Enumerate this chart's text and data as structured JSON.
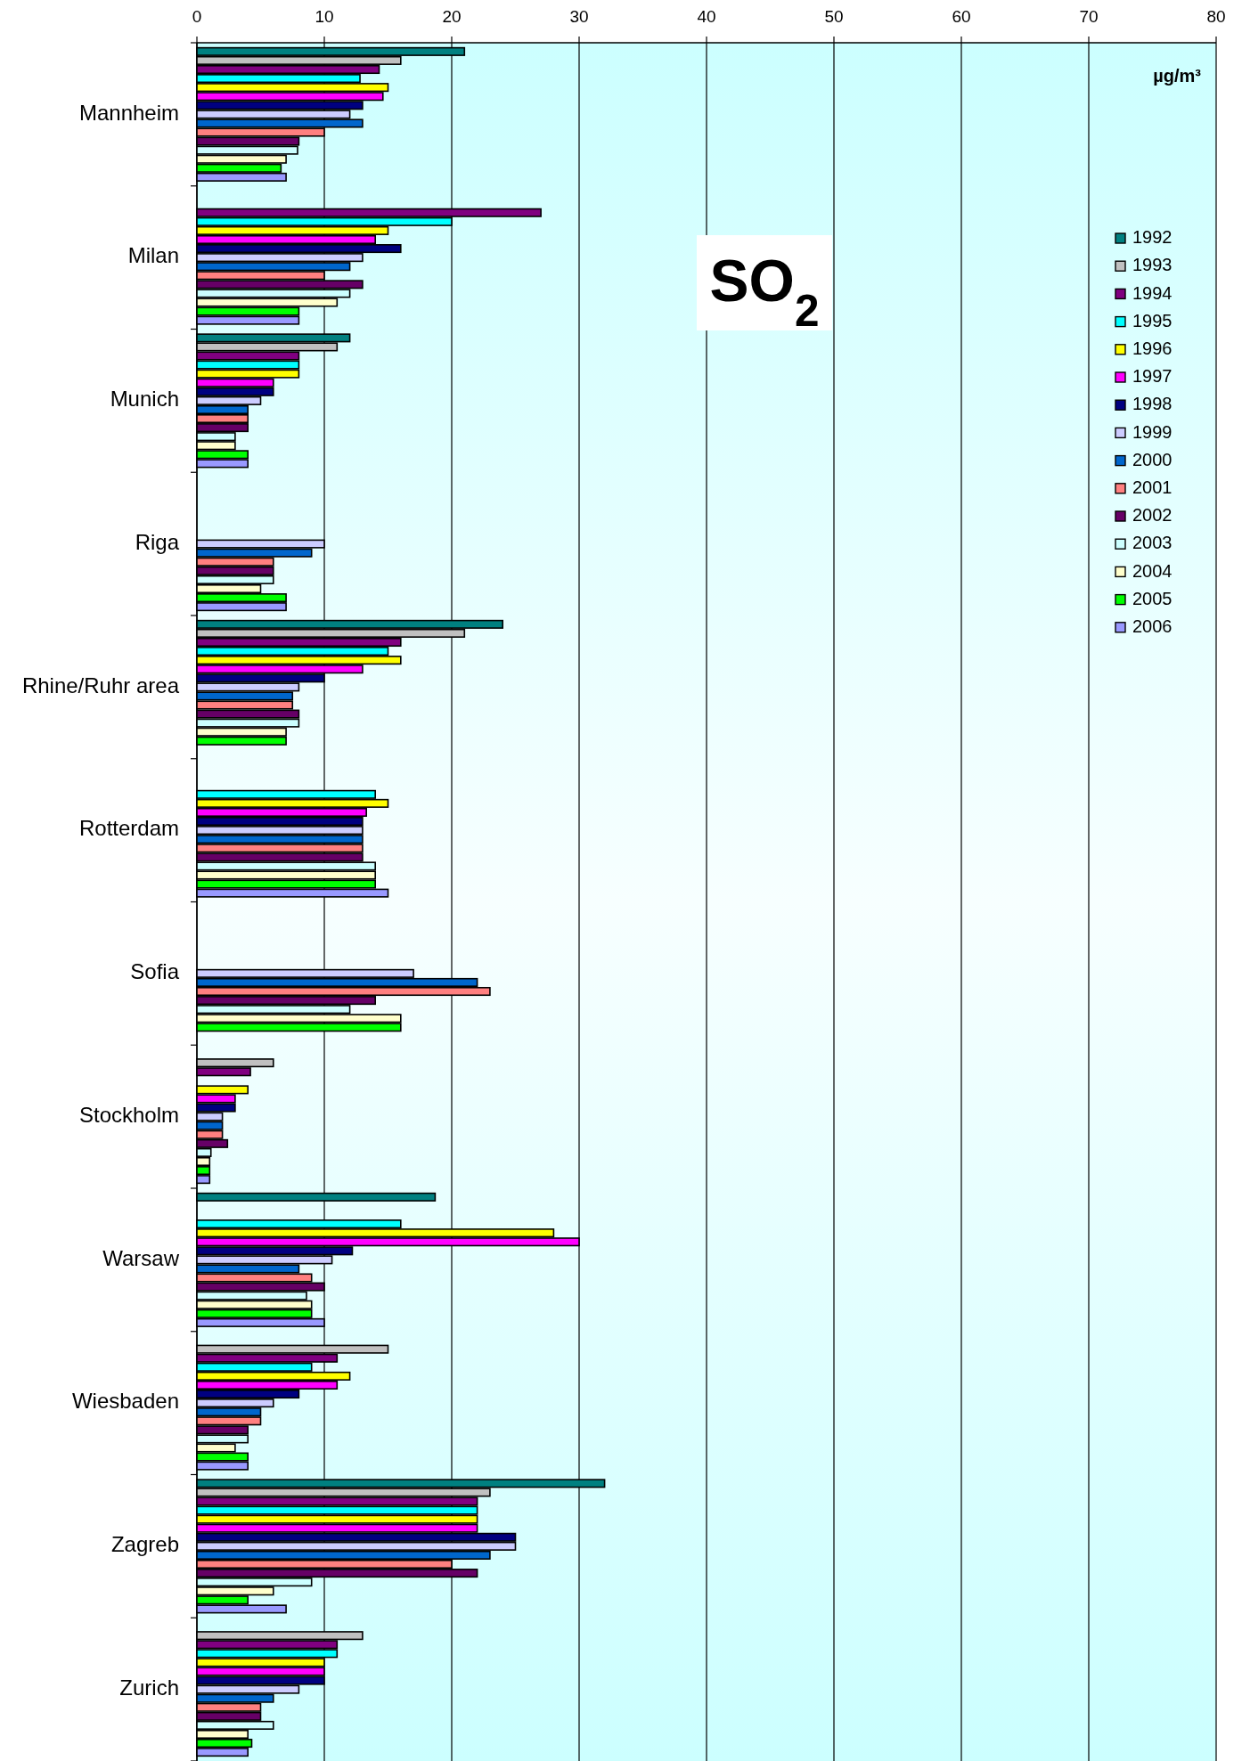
{
  "chart_data": {
    "type": "bar",
    "orientation": "horizontal",
    "title": "SO$_{2}$",
    "annotations": [
      "µg/m³"
    ],
    "categories": [
      "Mannheim",
      "Milan",
      "Munich",
      "Riga",
      "Rhine/Ruhr area",
      "Rotterdam",
      "Sofia",
      "Stockholm",
      "Warsaw",
      "Wiesbaden",
      "Zagreb",
      "Zurich"
    ],
    "xlim": [
      0,
      80
    ],
    "xticks": [
      0,
      10,
      20,
      30,
      40,
      50,
      60,
      70,
      80
    ],
    "grid": "x",
    "legend": "right",
    "series": [
      {
        "name": "1992",
        "color": "#008080",
        "values": [
          21,
          null,
          12,
          null,
          24,
          null,
          null,
          null,
          18.7,
          null,
          32,
          null
        ]
      },
      {
        "name": "1993",
        "color": "#c0c0c0",
        "values": [
          16,
          null,
          11,
          null,
          21,
          null,
          null,
          6,
          null,
          15,
          23,
          13
        ]
      },
      {
        "name": "1994",
        "color": "#800080",
        "values": [
          14.3,
          27,
          8,
          null,
          16,
          null,
          null,
          4.2,
          null,
          11,
          22,
          11
        ]
      },
      {
        "name": "1995",
        "color": "#00ffff",
        "values": [
          12.8,
          20,
          8,
          null,
          15,
          14,
          null,
          null,
          16,
          9,
          22,
          11
        ]
      },
      {
        "name": "1996",
        "color": "#ffff00",
        "values": [
          15,
          15,
          8,
          null,
          16,
          15,
          null,
          4,
          28,
          12,
          22,
          10
        ]
      },
      {
        "name": "1997",
        "color": "#ff00ff",
        "values": [
          14.6,
          14,
          6,
          null,
          13,
          13.3,
          null,
          3,
          30,
          11,
          22,
          10
        ]
      },
      {
        "name": "1998",
        "color": "#000080",
        "values": [
          13,
          16,
          6,
          null,
          10,
          13,
          null,
          3,
          12.2,
          8,
          25,
          10
        ]
      },
      {
        "name": "1999",
        "color": "#ccccff",
        "values": [
          12,
          13,
          5,
          10,
          8,
          13,
          17,
          2,
          10.6,
          6,
          25,
          8
        ]
      },
      {
        "name": "2000",
        "color": "#0066cc",
        "values": [
          13,
          12,
          4,
          9,
          7.5,
          13,
          22,
          2,
          8,
          5,
          23,
          6
        ]
      },
      {
        "name": "2001",
        "color": "#ff8080",
        "values": [
          10,
          10,
          4,
          6,
          7.5,
          13,
          23,
          2,
          9,
          5,
          20,
          5
        ]
      },
      {
        "name": "2002",
        "color": "#660066",
        "values": [
          8,
          13,
          4,
          6,
          8,
          13,
          14,
          2.4,
          10,
          4,
          22,
          5
        ]
      },
      {
        "name": "2003",
        "color": "#ccffff",
        "values": [
          7.9,
          12,
          3,
          6,
          8,
          14,
          12,
          1.1,
          8.6,
          4,
          9,
          6
        ]
      },
      {
        "name": "2004",
        "color": "#ffffcc",
        "values": [
          7,
          11,
          3,
          5,
          7,
          14,
          16,
          1,
          9,
          3,
          6,
          4
        ]
      },
      {
        "name": "2005",
        "color": "#00ff00",
        "values": [
          6.6,
          8,
          4,
          7,
          7,
          14,
          16,
          1,
          9,
          4,
          4,
          4.3
        ]
      },
      {
        "name": "2006",
        "color": "#9999ff",
        "values": [
          7,
          8,
          4,
          7,
          null,
          15,
          null,
          1,
          10,
          4,
          7,
          4
        ]
      }
    ]
  }
}
